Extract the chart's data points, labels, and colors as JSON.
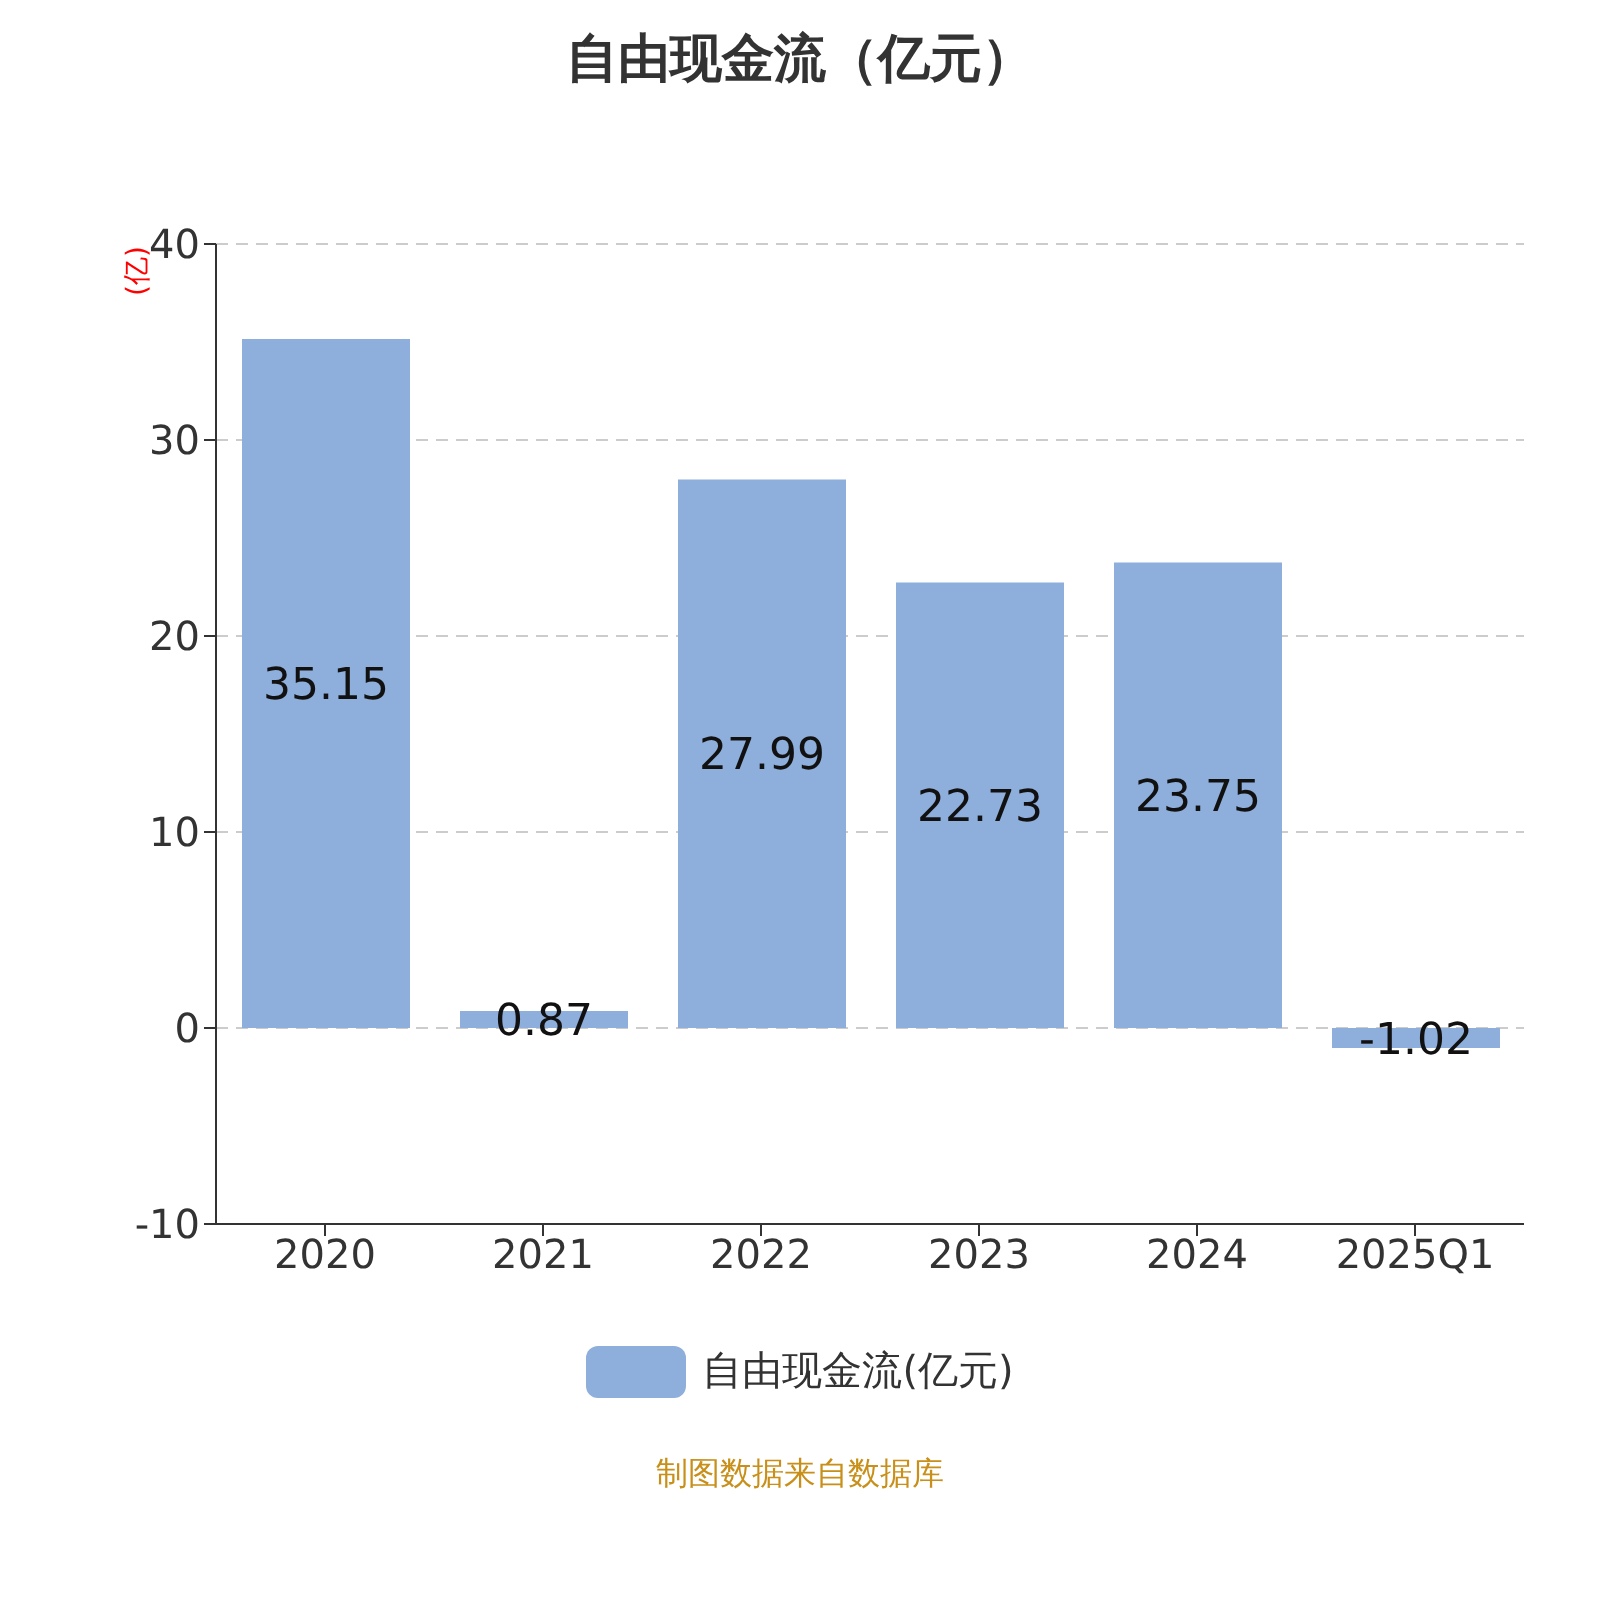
{
  "chart_data": {
    "type": "bar",
    "title": "自由现金流（亿元）",
    "ylabel": "(亿)",
    "categories": [
      "2020",
      "2021",
      "2022",
      "2023",
      "2024",
      "2025Q1"
    ],
    "series": [
      {
        "name": "自由现金流(亿元)",
        "color": "#8eaedb",
        "values": [
          35.15,
          0.87,
          27.99,
          22.73,
          23.75,
          -1.02
        ]
      }
    ],
    "ylim": [
      -10,
      40
    ],
    "yticks": [
      -10,
      0,
      10,
      20,
      30,
      40
    ],
    "grid": "y",
    "legend": "bottom",
    "data_labels": true,
    "annotations": [
      "制图数据来自数据库"
    ]
  }
}
